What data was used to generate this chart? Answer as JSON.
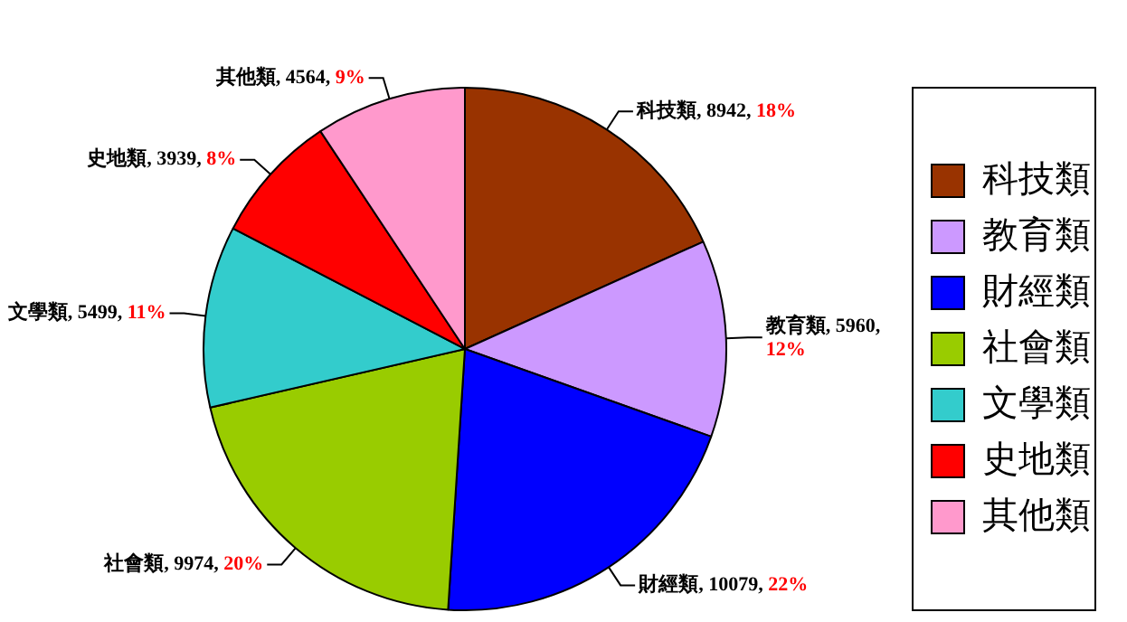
{
  "chart_data": {
    "type": "pie",
    "categories": [
      "科技類",
      "教育類",
      "財經類",
      "社會類",
      "文學類",
      "史地類",
      "其他類"
    ],
    "values": [
      8942,
      5960,
      10079,
      9974,
      5499,
      3939,
      4564
    ],
    "colors": [
      "#993300",
      "#cc99ff",
      "#0000ff",
      "#99cc00",
      "#33cccc",
      "#ff0000",
      "#ff99cc"
    ],
    "value_labels": [
      "科技類, 8942, 18%",
      "教育類, 5960, 12%",
      "財經類, 10079, 22%",
      "社會類, 9974, 20%",
      "文學類, 5499, 11%",
      "史地類, 3939, 8%",
      "其他類, 4564, 9%"
    ],
    "legend": "right"
  }
}
